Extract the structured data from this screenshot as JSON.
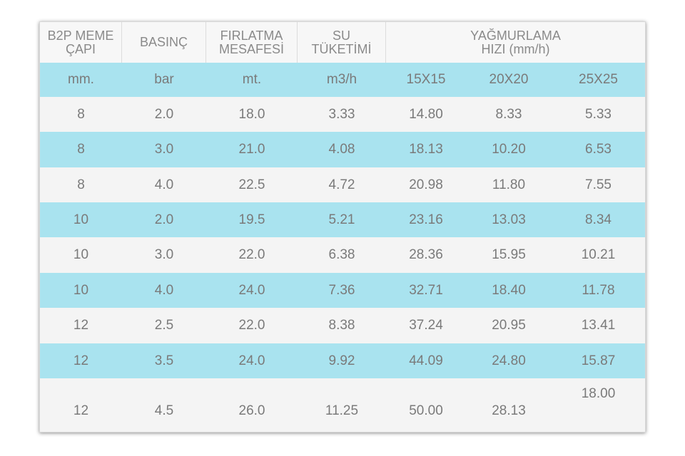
{
  "table": {
    "header": [
      [
        "B2P MEME",
        "ÇAPI"
      ],
      [
        "BASINÇ"
      ],
      [
        "FIRLATMA",
        "MESAFESİ"
      ],
      [
        "SU",
        "TÜKETİMİ"
      ],
      [
        "YAĞMURLAMA",
        "HIZI (mm/h)"
      ]
    ],
    "units": [
      "mm.",
      "bar",
      "mt.",
      "m3/h",
      "15X15",
      "20X20",
      "25X25"
    ],
    "rows": [
      [
        "8",
        "2.0",
        "18.0",
        "3.33",
        "14.80",
        "8.33",
        "5.33"
      ],
      [
        "8",
        "3.0",
        "21.0",
        "4.08",
        "18.13",
        "10.20",
        "6.53"
      ],
      [
        "8",
        "4.0",
        "22.5",
        "4.72",
        "20.98",
        "11.80",
        "7.55"
      ],
      [
        "10",
        "2.0",
        "19.5",
        "5.21",
        "23.16",
        "13.03",
        "8.34"
      ],
      [
        "10",
        "3.0",
        "22.0",
        "6.38",
        "28.36",
        "15.95",
        "10.21"
      ],
      [
        "10",
        "4.0",
        "24.0",
        "7.36",
        "32.71",
        "18.40",
        "11.78"
      ],
      [
        "12",
        "2.5",
        "22.0",
        "8.38",
        "37.24",
        "20.95",
        "13.41"
      ],
      [
        "12",
        "3.5",
        "24.0",
        "9.92",
        "44.09",
        "24.80",
        "15.87"
      ],
      [
        "12",
        "4.5",
        "26.0",
        "11.25",
        "50.00",
        "28.13",
        "18.00"
      ]
    ]
  }
}
